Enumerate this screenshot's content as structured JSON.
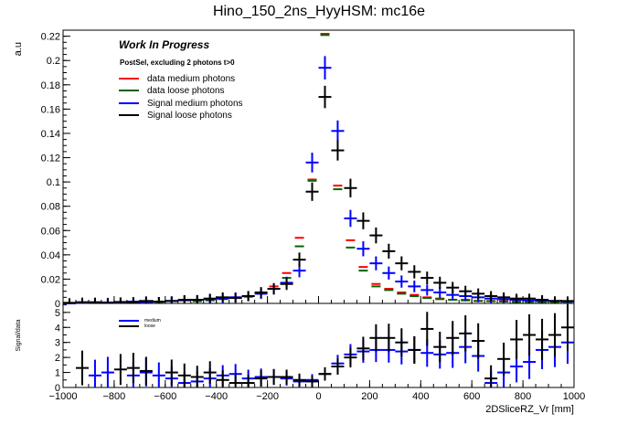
{
  "chart_data": [
    {
      "type": "scatter",
      "title": "Hino_150_2ns_HyyHSM: mc16e",
      "ylabel": "a.u",
      "xlim": [
        -1000,
        1000
      ],
      "ylim": [
        0,
        0.225
      ],
      "yticks": [
        0,
        0.02,
        0.04,
        0.06,
        0.08,
        0.1,
        0.12,
        0.14,
        0.16,
        0.18,
        0.2,
        0.22
      ],
      "ytick_labels": [
        "0",
        "0.02",
        "0.04",
        "0.06",
        "0.08",
        "0.1",
        "0.12",
        "0.14",
        "0.16",
        "0.18",
        "0.2",
        "0.22"
      ],
      "annotations": [
        "Work In Progress",
        "PostSel, excluding 2 photons t>0"
      ],
      "legend_position": "top-left",
      "series": [
        {
          "name": "data medium photons",
          "color": "#ff0000",
          "x": [
            -775,
            -625,
            -475,
            -425,
            -375,
            -325,
            -275,
            -225,
            -175,
            -125,
            -75,
            -25,
            25,
            75,
            125,
            175,
            225,
            275,
            325,
            375,
            425,
            475,
            525,
            575,
            625,
            675,
            725,
            775,
            825,
            875,
            925,
            975
          ],
          "y": [
            0.001,
            0.0015,
            0.002,
            0.003,
            0.004,
            0.005,
            0.006,
            0.009,
            0.014,
            0.025,
            0.054,
            0.102,
            0.222,
            0.097,
            0.052,
            0.03,
            0.016,
            0.012,
            0.009,
            0.007,
            0.005,
            0.004,
            0.003,
            0.003,
            0.002,
            0.002,
            0.002,
            0.0015,
            0.0015,
            0.001,
            0.001,
            0.001
          ]
        },
        {
          "name": "data loose photons",
          "color": "#006400",
          "x": [
            -775,
            -625,
            -475,
            -425,
            -375,
            -325,
            -275,
            -225,
            -175,
            -125,
            -75,
            -25,
            25,
            75,
            125,
            175,
            225,
            275,
            325,
            375,
            425,
            475,
            525,
            575,
            625,
            675,
            725,
            775,
            825,
            875,
            925,
            975
          ],
          "y": [
            0.0008,
            0.0012,
            0.0018,
            0.0025,
            0.0035,
            0.0045,
            0.0055,
            0.008,
            0.012,
            0.021,
            0.047,
            0.101,
            0.221,
            0.094,
            0.046,
            0.027,
            0.014,
            0.011,
            0.008,
            0.006,
            0.0045,
            0.0035,
            0.003,
            0.0025,
            0.002,
            0.0018,
            0.0015,
            0.0012,
            0.0012,
            0.001,
            0.001,
            0.0008
          ]
        },
        {
          "name": "Signal medium photons",
          "color": "#0000ff",
          "x": [
            -975,
            -925,
            -875,
            -825,
            -775,
            -725,
            -675,
            -625,
            -575,
            -525,
            -475,
            -425,
            -375,
            -325,
            -275,
            -225,
            -175,
            -125,
            -75,
            -25,
            25,
            75,
            125,
            175,
            225,
            275,
            325,
            375,
            425,
            475,
            525,
            575,
            625,
            675,
            725,
            775,
            825,
            875,
            925,
            975
          ],
          "y": [
            0.0,
            0.0005,
            0.001,
            0.0008,
            0.001,
            0.0015,
            0.0012,
            0.0015,
            0.002,
            0.0025,
            0.003,
            0.0035,
            0.004,
            0.005,
            0.006,
            0.008,
            0.012,
            0.017,
            0.027,
            0.116,
            0.194,
            0.142,
            0.07,
            0.045,
            0.033,
            0.025,
            0.018,
            0.014,
            0.011,
            0.009,
            0.007,
            0.006,
            0.005,
            0.004,
            0.0035,
            0.003,
            0.0025,
            0.002,
            0.002,
            0.0015
          ]
        },
        {
          "name": "Signal loose photons",
          "color": "#000000",
          "x": [
            -975,
            -925,
            -875,
            -825,
            -775,
            -725,
            -675,
            -625,
            -575,
            -525,
            -475,
            -425,
            -375,
            -325,
            -275,
            -225,
            -175,
            -125,
            -75,
            -25,
            25,
            75,
            125,
            175,
            225,
            275,
            325,
            375,
            425,
            475,
            525,
            575,
            625,
            675,
            725,
            775,
            825,
            875,
            925,
            975
          ],
          "y": [
            0.0005,
            0.001,
            0.0008,
            0.0005,
            0.0012,
            0.001,
            0.002,
            0.0015,
            0.002,
            0.003,
            0.003,
            0.004,
            0.005,
            0.0045,
            0.006,
            0.009,
            0.012,
            0.016,
            0.036,
            0.092,
            0.17,
            0.126,
            0.095,
            0.068,
            0.056,
            0.043,
            0.033,
            0.026,
            0.021,
            0.017,
            0.013,
            0.01,
            0.008,
            0.006,
            0.005,
            0.004,
            0.004,
            0.003,
            0.002,
            0.002
          ]
        }
      ]
    },
    {
      "type": "scatter",
      "title": "",
      "xlabel": "2DSliceRZ_Vr [mm]",
      "ylabel": "Signal/data",
      "xlim": [
        -1000,
        1000
      ],
      "ylim": [
        0,
        5.6
      ],
      "xticks": [
        -1000,
        -800,
        -600,
        -400,
        -200,
        0,
        200,
        400,
        600,
        800,
        1000
      ],
      "xtick_labels": [
        "−1000",
        "−800",
        "−600",
        "−400",
        "−200",
        "0",
        "200",
        "400",
        "600",
        "800",
        "1000"
      ],
      "yticks": [
        0,
        1,
        2,
        3,
        4,
        5
      ],
      "ytick_labels": [
        "0",
        "1",
        "2",
        "3",
        "4",
        "5"
      ],
      "legend_position": "top-left",
      "series": [
        {
          "name": "medium",
          "color": "#0000ff",
          "x": [
            -875,
            -825,
            -725,
            -675,
            -625,
            -575,
            -525,
            -475,
            -425,
            -375,
            -325,
            -275,
            -225,
            -175,
            -125,
            -75,
            -25,
            25,
            75,
            125,
            175,
            225,
            275,
            325,
            375,
            425,
            475,
            525,
            575,
            625,
            675,
            725,
            775,
            825,
            875,
            925,
            975
          ],
          "y": [
            0.8,
            1.0,
            0.8,
            1.0,
            0.8,
            0.6,
            0.3,
            0.4,
            0.6,
            0.8,
            0.9,
            0.6,
            0.7,
            0.7,
            0.6,
            0.4,
            0.5,
            0.9,
            1.6,
            2.2,
            2.4,
            2.5,
            2.5,
            2.4,
            2.5,
            2.3,
            2.2,
            2.3,
            2.7,
            2.1,
            0.3,
            1.0,
            1.4,
            1.7,
            2.5,
            2.7,
            3.0
          ]
        },
        {
          "name": "loose",
          "color": "#000000",
          "x": [
            -925,
            -775,
            -725,
            -675,
            -575,
            -525,
            -475,
            -425,
            -375,
            -325,
            -275,
            -225,
            -175,
            -125,
            -75,
            -25,
            25,
            75,
            125,
            175,
            225,
            275,
            325,
            375,
            425,
            475,
            525,
            575,
            625,
            675,
            725,
            775,
            825,
            875,
            925,
            975
          ],
          "y": [
            1.3,
            1.2,
            1.3,
            1.1,
            1.0,
            0.8,
            0.7,
            1.0,
            0.5,
            0.3,
            0.3,
            0.6,
            0.7,
            0.7,
            0.5,
            0.4,
            0.9,
            1.4,
            2.0,
            2.6,
            3.3,
            3.3,
            3.0,
            2.5,
            3.9,
            2.7,
            3.3,
            3.6,
            3.1,
            0.6,
            1.9,
            3.2,
            3.5,
            3.2,
            3.5,
            4.0
          ]
        }
      ]
    }
  ]
}
